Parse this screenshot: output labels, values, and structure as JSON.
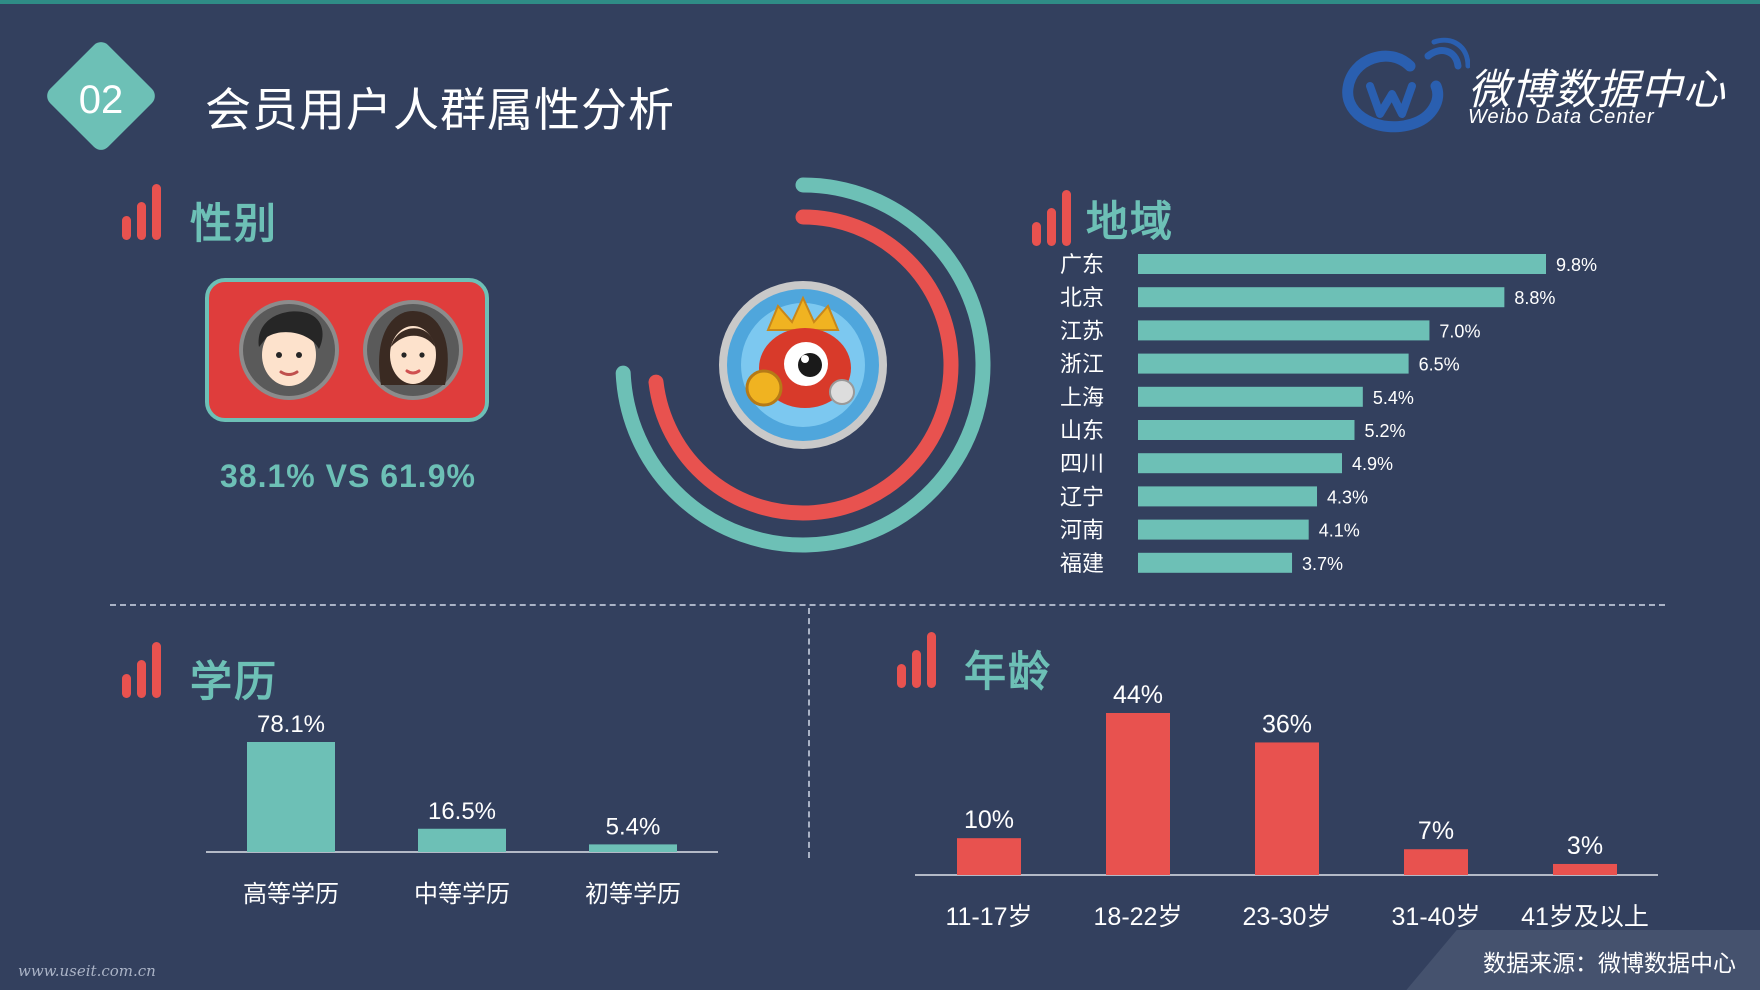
{
  "header": {
    "badge": "02",
    "title": "会员用户人群属性分析",
    "brand_name": "微博数据中心",
    "brand_en": "Weibo Data Center"
  },
  "colors": {
    "teal": "#6dc0b6",
    "red": "#e8524f",
    "background": "#33405e"
  },
  "gender": {
    "title": "性别",
    "male_value": "38.1%",
    "vs": "VS",
    "female_value": "61.9%"
  },
  "region": {
    "title": "地域"
  },
  "education": {
    "title": "学历"
  },
  "age": {
    "title": "年龄"
  },
  "chart_data": [
    {
      "type": "bar",
      "orientation": "horizontal",
      "title": "地域",
      "categories": [
        "广东",
        "北京",
        "江苏",
        "浙江",
        "上海",
        "山东",
        "四川",
        "辽宁",
        "河南",
        "福建"
      ],
      "values": [
        9.8,
        8.8,
        7.0,
        6.5,
        5.4,
        5.2,
        4.9,
        4.3,
        4.1,
        3.7
      ],
      "value_labels": [
        "9.8%",
        "8.8%",
        "7.0%",
        "6.5%",
        "5.4%",
        "5.2%",
        "4.9%",
        "4.3%",
        "4.1%",
        "3.7%"
      ],
      "color": "#6dc0b6"
    },
    {
      "type": "bar",
      "title": "学历",
      "categories": [
        "高等学历",
        "中等学历",
        "初等学历"
      ],
      "values": [
        78.1,
        16.5,
        5.4
      ],
      "value_labels": [
        "78.1%",
        "16.5%",
        "5.4%"
      ],
      "color": "#6dc0b6"
    },
    {
      "type": "bar",
      "title": "年龄",
      "categories": [
        "11-17岁",
        "18-22岁",
        "23-30岁",
        "31-40岁",
        "41岁及以上"
      ],
      "values": [
        10,
        44,
        36,
        7,
        3
      ],
      "value_labels": [
        "10%",
        "44%",
        "36%",
        "7%",
        "3%"
      ],
      "color": "#e8524f"
    },
    {
      "type": "pie",
      "style": "concentric-arcs",
      "series": [
        {
          "values": [
            61.9
          ],
          "color": "#6dc0b6"
        },
        {
          "values": [
            38.1
          ],
          "color": "#e8524f"
        }
      ]
    }
  ],
  "footer": {
    "source": "数据来源：微博数据中心",
    "watermark": "www.useit.com.cn"
  }
}
